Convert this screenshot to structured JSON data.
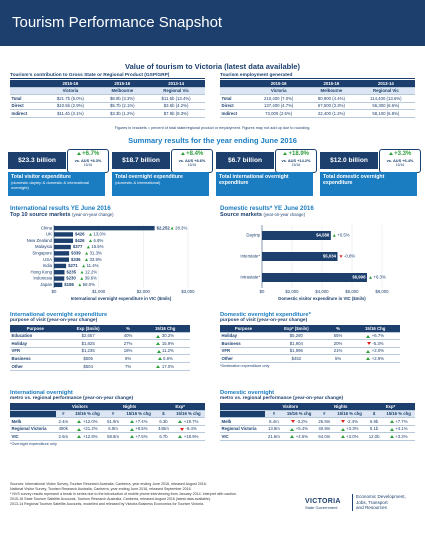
{
  "header": {
    "title": "Tourism Performance Snapshot"
  },
  "value_section": {
    "title": "Value of tourism to Victoria (latest data available)",
    "gsp": {
      "title": "Tourism's contribution to Gross State or Regional Product (GSP/GRP)",
      "years": [
        "2015-16",
        "2015-16",
        "2013-14"
      ],
      "header": [
        "Victoria",
        "Melbourne",
        "Regional Vic"
      ],
      "rows": [
        [
          "Total",
          "$21.7b (6.0%)",
          "$8.9b (3.3%)",
          "$11.5b (13.4%)"
        ],
        [
          "Direct",
          "$10.5b (2.9%)",
          "$5.7b (2.1%)",
          "$3.6b (4.2%)"
        ],
        [
          "Indirect",
          "$11.4b (3.1%)",
          "$3.3b (1.2%)",
          "$7.9b (9.3%)"
        ]
      ]
    },
    "employment": {
      "title": "Tourism employment generated",
      "years": [
        "2015-16",
        "2015-16",
        "2013-14"
      ],
      "header": [
        "Victoria",
        "Melbourne",
        "Regional Vic"
      ],
      "rows": [
        [
          "Total",
          "210,400 (7.0%)",
          "80,900 (4.4%)",
          "114,400 (13.6%)"
        ],
        [
          "Direct",
          "137,400 (4.7%)",
          "67,500 (3.3%)",
          "56,300 (6.6%)"
        ],
        [
          "Indirect",
          "73,000 (2.5%)",
          "22,400 (1.2%)",
          "58,100 (6.8%)"
        ]
      ]
    },
    "note": "Figures in brackets = percent of total state/regional product or employment. Figures may not add up due to rounding."
  },
  "summary": {
    "title": "Summary results for the year ending June 2016",
    "cards": [
      {
        "value": "$23.3 billion",
        "change": "+6.7%",
        "vs": "vs. AUS +8.3%",
        "period": "15/16",
        "label": "Total visitor expenditure",
        "detail": "(domestic daytrip & domestic & international overnight)"
      },
      {
        "value": "$18.7 billion",
        "change": "+8.4%",
        "vs": "vs. AUS +8.6%",
        "period": "15/16",
        "label": "Total overnight expenditure",
        "detail": "(domestic & international)"
      },
      {
        "value": "$6.7 billion",
        "change": "+18.9%",
        "vs": "vs. AUS +14.2%",
        "period": "15/16",
        "label": "Total international overnight expenditure"
      },
      {
        "value": "$12.0 billion",
        "change": "+3.3%",
        "vs": "vs. AUS +6.4%",
        "period": "15/16",
        "label": "Total domestic overnight expenditure"
      }
    ]
  },
  "international": {
    "title": "International results YE June 2016",
    "subtitle": "Top 10 source markets",
    "subtitle_note": "(year-on-year change)"
  },
  "domestic": {
    "title": "Domestic results* YE June 2016",
    "subtitle": "Source markets",
    "subtitle_note": "(year-on-year change)"
  },
  "chart_data": [
    {
      "type": "bar",
      "orientation": "horizontal",
      "color": "#1c3f6e",
      "categories": [
        "China",
        "UK",
        "New Zealand",
        "Malaysia",
        "Singapore",
        "USA",
        "India",
        "Hong Kong",
        "Indonesia",
        "Japan"
      ],
      "values": [
        2252,
        426,
        426,
        377,
        339,
        336,
        271,
        235,
        230,
        186
      ],
      "value_labels": [
        "$2,252",
        "$426",
        "$426",
        "$377",
        "$339",
        "$336",
        "$271",
        "$235",
        "$230",
        "$186"
      ],
      "changes": [
        "28.3%",
        "13.0%",
        "6.8%",
        "15.5%",
        "31.3%",
        "33.9%",
        "11.4%",
        "12.2%",
        "39.6%",
        "58.0%"
      ],
      "xlim": [
        0,
        3000
      ],
      "xticks": [
        {
          "value": 0,
          "label": "$0"
        },
        {
          "value": 1000,
          "label": "$1,000"
        },
        {
          "value": 2000,
          "label": "$2,000"
        },
        {
          "value": 3000,
          "label": "$3,000"
        }
      ],
      "x_label": "International overnight expenditure in VIC ($mils)"
    },
    {
      "type": "bar",
      "orientation": "horizontal",
      "color": "#1c3f6e",
      "categories": [
        "Daytrip",
        "Interstate*",
        "Intrastate*"
      ],
      "values": [
        4588,
        5034,
        6998
      ],
      "value_labels": [
        "$4,588",
        "$5,034",
        "$6,998"
      ],
      "changes": [
        "+0.5%",
        "-0.8%",
        "+6.3%"
      ],
      "xlim": [
        0,
        8000
      ],
      "xticks": [
        {
          "value": 0,
          "label": "$0"
        },
        {
          "value": 2000,
          "label": "$2,000"
        },
        {
          "value": 4000,
          "label": "$4,000"
        },
        {
          "value": 6000,
          "label": "$6,000"
        },
        {
          "value": 8000,
          "label": "$8,000"
        }
      ],
      "x_label": "Domestic visitor expenditure in VIC ($mils)"
    }
  ],
  "intl_purpose": {
    "title": "International overnight expenditure",
    "subtitle": "purpose of visit (year-on-year change)",
    "header": [
      "Purpose",
      "Exp ($mils)",
      "%",
      "15/16 Chg"
    ],
    "rows": [
      [
        "Education",
        "$2,657",
        "40%",
        "30.2%"
      ],
      [
        "Holiday",
        "$1,825",
        "27%",
        "15.9%"
      ],
      [
        "VFR",
        "$1,235",
        "18%",
        "11.2%"
      ],
      [
        "Business",
        "$505",
        "8%",
        "0.8%"
      ],
      [
        "Other",
        "$504",
        "7%",
        "17.0%"
      ]
    ]
  },
  "dom_purpose": {
    "title": "Domestic overnight expenditure*",
    "subtitle": "purpose of visit (year-on-year change)",
    "header": [
      "Purpose",
      "Exp* ($mils)",
      "%",
      "15/16 Chg"
    ],
    "rows": [
      [
        "Holiday",
        "$5,280",
        "55%",
        "+6.7%"
      ],
      [
        "Business",
        "$1,904",
        "20%",
        "-5.3%"
      ],
      [
        "VFR",
        "$1,996",
        "21%",
        "+2.0%"
      ],
      [
        "Other",
        "$452",
        "5%",
        "+2.9%"
      ]
    ],
    "note": "*Destination expenditure only"
  },
  "intl_metro": {
    "title": "International overnight",
    "subtitle": "metro vs. regional performance (year-on-year change)",
    "group_header": [
      "Visitors",
      "Nights",
      "Exp*"
    ],
    "header": [
      "#",
      "15/16 % chg",
      "#",
      "15/16 % chg",
      "$",
      "15/16 % chg"
    ],
    "rows": [
      [
        "Melb",
        "2.4m",
        "+12.0%",
        "51.9m",
        "+7.4%",
        "6.3b",
        "+19.7%"
      ],
      [
        "Regional Victoria",
        "490k",
        "+21.2%",
        "6.9m",
        "+8.5%",
        "445m",
        "-8.4%"
      ],
      [
        "VIC",
        "2.6m",
        "+12.8%",
        "58.8m",
        "+7.5%",
        "6.7b",
        "+18.9%"
      ]
    ],
    "note": "*Overnight expenditure only"
  },
  "dom_metro": {
    "title": "Domestic overnight",
    "subtitle": "metro vs. regional performance (year-on-year change)",
    "group_header": [
      "Visitors",
      "Nights",
      "Exp*"
    ],
    "header": [
      "#",
      "15/16 % chg",
      "#",
      "15/16 % chg",
      "$",
      "15/16 % chg"
    ],
    "rows": [
      [
        "Melb",
        "8.4m",
        "-3.2%",
        "25.9m",
        "-2.4%",
        "6.9b",
        "+7.7%"
      ],
      [
        "Regional Victoria",
        "13.9m",
        "+5.4%",
        "40.9m",
        "+3.3%",
        "5.1b",
        "+4.1%"
      ],
      [
        "VIC",
        "21.6m",
        "+4.6%",
        "64.0m",
        "+3.0%",
        "12.0b",
        "+3.3%"
      ]
    ]
  },
  "footer": {
    "sources": [
      "Sources: International Visitor Survey, Tourism Research Australia, Canberra, year ending June 2016, released August 2016.",
      "National Visitor Survey, Tourism Research Australia, Canberra, year ending June 2016, released September 2016.",
      "* NVS survey results represent a break in series due to the introduction of mobile phone interviewing from January 2014. Interpret with caution.",
      "2015-16 State Tourism Satellite Accounts, Tourism Research Australia, Canberra, released August 2016 (latest data available).",
      "2013-14 Regional Tourism Satellite Accounts, modelled and released by Victoria Business Economics for Tourism Victoria."
    ],
    "logo": "VICTORIA",
    "logo_sub": "State Government",
    "department": [
      "Economic Development,",
      "Jobs, Transport",
      "and Resources"
    ]
  }
}
